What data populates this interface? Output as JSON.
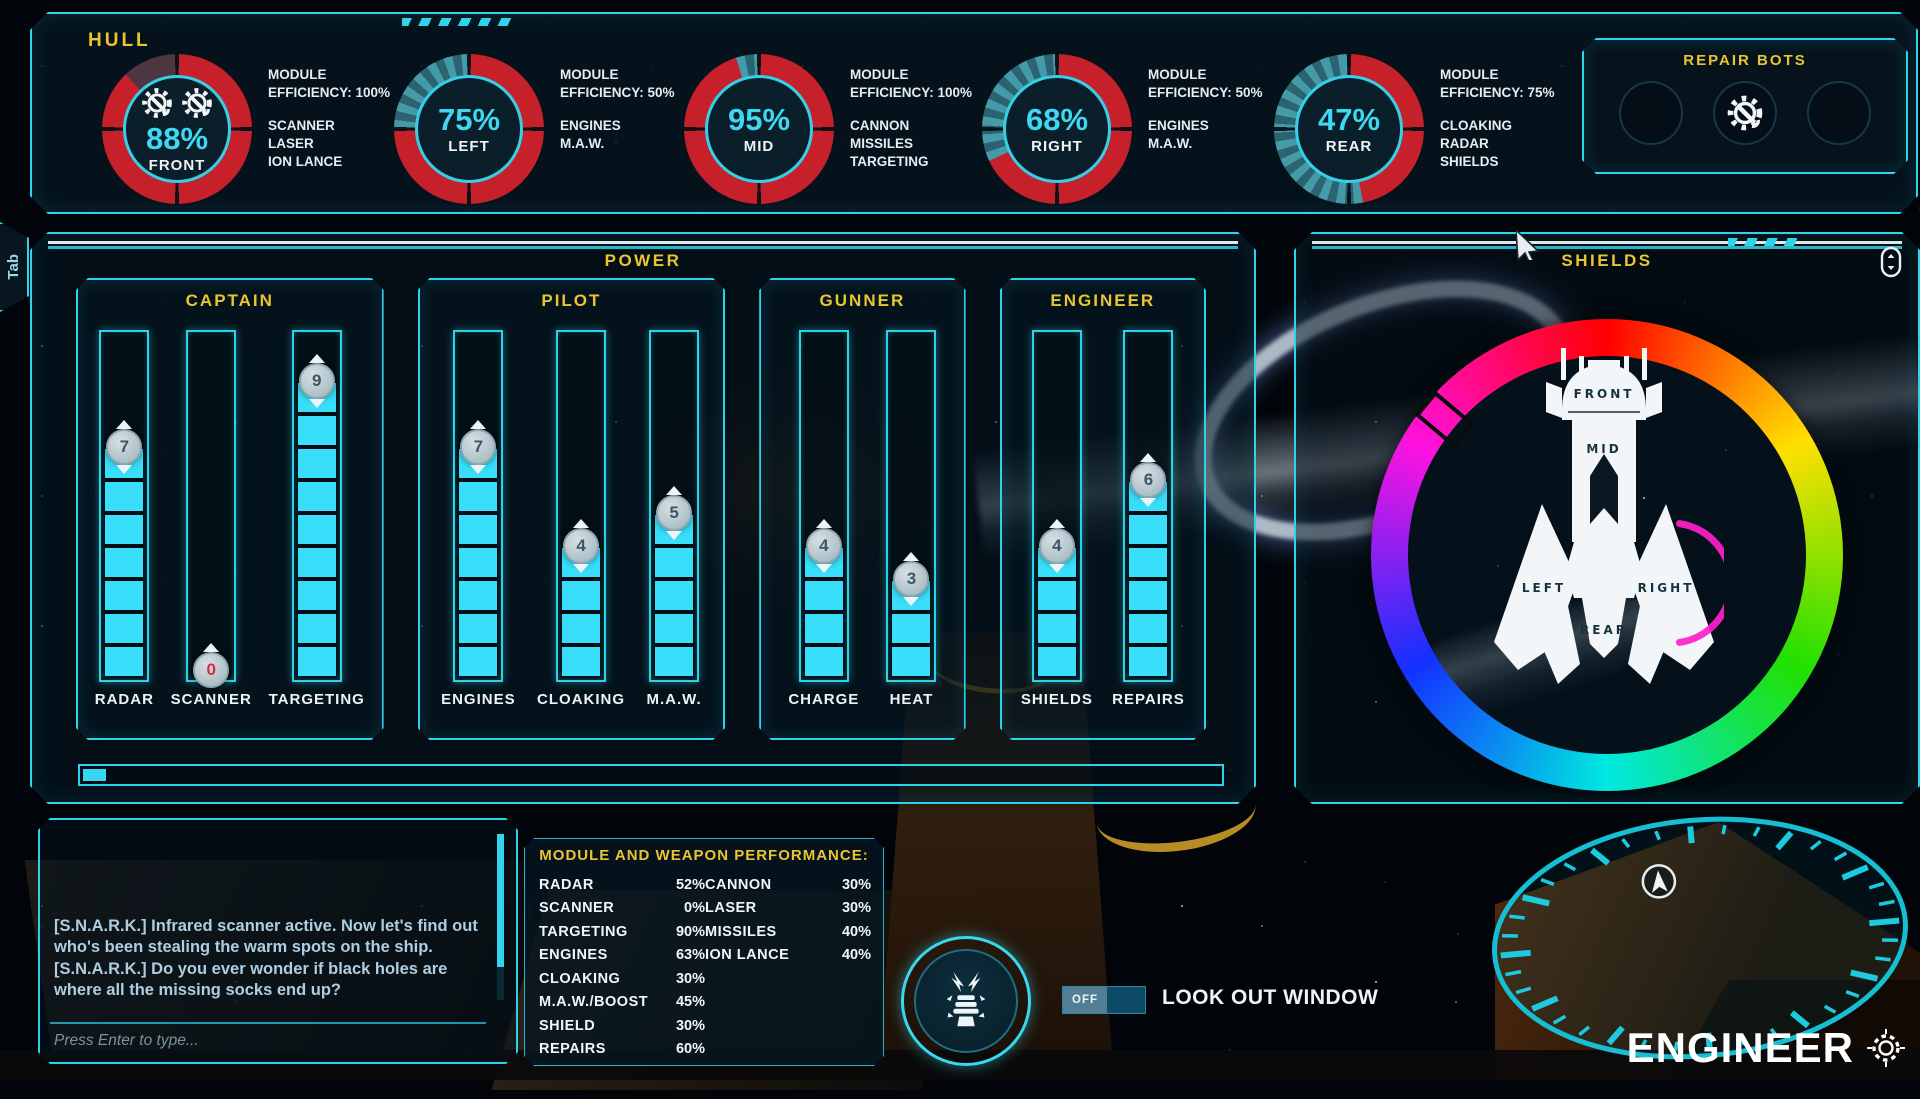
{
  "colors": {
    "accent": "#2fd4ea",
    "title_yellow": "#e8c531",
    "hull_red": "#c6202b",
    "bar_fill": "#38defa",
    "shield_magenta": "#ff1ecb"
  },
  "tab_label": "Tab",
  "hull": {
    "title": "HULL",
    "efficiency_prefix": "MODULE EFFICIENCY:",
    "gauges": [
      {
        "value": 88,
        "pct": "88%",
        "zone": "FRONT",
        "efficiency": "100%",
        "modules": [
          "SCANNER",
          "LASER",
          "ION LANCE"
        ],
        "repair_bots": 2,
        "missing": "dark"
      },
      {
        "value": 75,
        "pct": "75%",
        "zone": "LEFT",
        "efficiency": "50%",
        "modules": [
          "ENGINES",
          "M.A.W."
        ],
        "repair_bots": 0,
        "missing": "striped"
      },
      {
        "value": 95,
        "pct": "95%",
        "zone": "MID",
        "efficiency": "100%",
        "modules": [
          "CANNON",
          "MISSILES",
          "TARGETING"
        ],
        "repair_bots": 0,
        "missing": "striped"
      },
      {
        "value": 68,
        "pct": "68%",
        "zone": "RIGHT",
        "efficiency": "50%",
        "modules": [
          "ENGINES",
          "M.A.W."
        ],
        "repair_bots": 0,
        "missing": "striped"
      },
      {
        "value": 47,
        "pct": "47%",
        "zone": "REAR",
        "efficiency": "75%",
        "modules": [
          "CLOAKING",
          "RADAR",
          "SHIELDS"
        ],
        "repair_bots": 0,
        "missing": "striped"
      }
    ],
    "repair_bots": {
      "title": "REPAIR BOTS",
      "slots": [
        false,
        true,
        false
      ]
    }
  },
  "power": {
    "title": "POWER",
    "max_segments": 10,
    "reserve_pct": 2,
    "groups": [
      {
        "name": "CAPTAIN",
        "bars": [
          {
            "label": "RADAR",
            "value": 7
          },
          {
            "label": "SCANNER",
            "value": 0
          },
          {
            "label": "TARGETING",
            "value": 9
          }
        ]
      },
      {
        "name": "PILOT",
        "bars": [
          {
            "label": "ENGINES",
            "value": 7
          },
          {
            "label": "CLOAKING",
            "value": 4
          },
          {
            "label": "M.A.W.",
            "value": 5
          }
        ]
      },
      {
        "name": "GUNNER",
        "bars": [
          {
            "label": "CHARGE",
            "value": 4
          },
          {
            "label": "HEAT",
            "value": 3
          }
        ]
      },
      {
        "name": "ENGINEER",
        "bars": [
          {
            "label": "SHIELDS",
            "value": 4
          },
          {
            "label": "REPAIRS",
            "value": 6
          }
        ]
      }
    ]
  },
  "shields": {
    "title": "SHIELDS",
    "zones": {
      "front": "FRONT",
      "mid": "MID",
      "left": "LEFT",
      "right": "RIGHT",
      "rear": "REAR"
    }
  },
  "chat": {
    "messages": [
      "[S.N.A.R.K.] Infrared scanner active. Now let's find out who's been stealing the warm spots on the ship.",
      "[S.N.A.R.K.] Do you ever wonder if black holes are where all the missing socks end up?"
    ],
    "input_placeholder": "Press Enter to type..."
  },
  "performance": {
    "title": "MODULE AND WEAPON PERFORMANCE:",
    "left": [
      [
        "RADAR",
        "52%"
      ],
      [
        "SCANNER",
        "0%"
      ],
      [
        "TARGETING",
        "90%"
      ],
      [
        "ENGINES",
        "63%"
      ],
      [
        "CLOAKING",
        "30%"
      ],
      [
        "M.A.W./BOOST",
        "45%"
      ],
      [
        "SHIELD",
        "30%"
      ],
      [
        "REPAIRS",
        "60%"
      ]
    ],
    "right": [
      [
        "CANNON",
        "30%"
      ],
      [
        "LASER",
        "30%"
      ],
      [
        "MISSILES",
        "40%"
      ],
      [
        "ION LANCE",
        "40%"
      ]
    ]
  },
  "lookout": {
    "state": "OFF",
    "label": "LOOK OUT WINDOW"
  },
  "role_label": "ENGINEER"
}
